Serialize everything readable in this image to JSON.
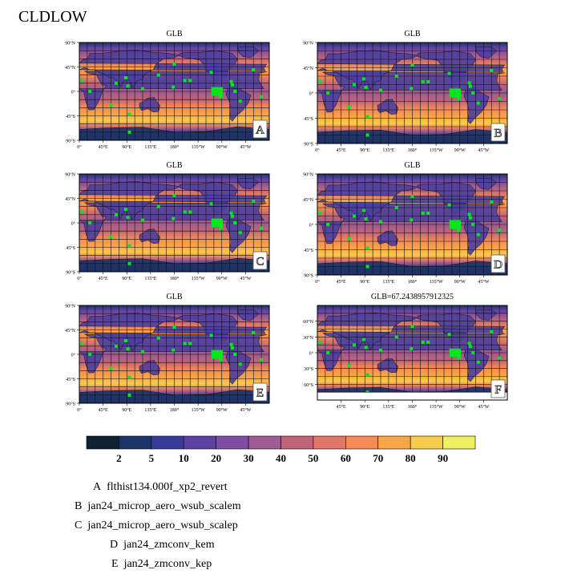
{
  "figure": {
    "title": "CLDLOW"
  },
  "colors": {
    "ocean_base": "#d98a5c",
    "marker": "#00e81c",
    "grid": "#111111",
    "frame": "#000000",
    "letter_box_border": "#555555"
  },
  "colorbar": {
    "colors": [
      "#0e2233",
      "#1d3466",
      "#3a3a98",
      "#5d42a4",
      "#7f4ea2",
      "#9e5a92",
      "#bf6479",
      "#df7668",
      "#f58a55",
      "#f9a646",
      "#f8cc4b",
      "#eef060"
    ],
    "labels": [
      "2",
      "5",
      "10",
      "20",
      "30",
      "40",
      "50",
      "60",
      "70",
      "80",
      "90"
    ]
  },
  "legend": {
    "items": [
      {
        "letter": "A",
        "name": "flthist134.000f_xp2_revert"
      },
      {
        "letter": "B",
        "name": "jan24_microp_aero_wsub_scalem"
      },
      {
        "letter": "C",
        "name": "jan24_microp_aero_wsub_scalep"
      },
      {
        "letter": "D",
        "name": "jan24_zmconv_kem"
      },
      {
        "letter": "E",
        "name": "jan24_zmconv_kep"
      }
    ]
  },
  "chart_data": [
    {
      "type": "heatmap",
      "panel": "A",
      "title": "GLB",
      "projection": "global",
      "ylabels": [
        "90°N",
        "45°N",
        "0°",
        "45°S",
        "90°S"
      ],
      "yvalues": [
        90,
        45,
        0,
        -45,
        -90
      ],
      "xlabels": [
        "0°",
        "45°E",
        "90°E",
        "135°E",
        "180°",
        "135°W",
        "90°W",
        "45°W"
      ],
      "xvalues": [
        0,
        45,
        90,
        135,
        180,
        225,
        270,
        315
      ],
      "xlim": [
        0,
        360
      ],
      "ylim": [
        -90,
        90
      ],
      "colorbar_label_range": [
        2,
        90
      ],
      "grid": true
    },
    {
      "type": "heatmap",
      "panel": "B",
      "title": "GLB",
      "projection": "global",
      "ylabels": [
        "90°N",
        "45°N",
        "0°",
        "45°S",
        "90°S"
      ],
      "yvalues": [
        90,
        45,
        0,
        -45,
        -90
      ],
      "xlabels": [
        "0°",
        "45°E",
        "90°E",
        "135°E",
        "180°",
        "135°W",
        "90°W",
        "45°W"
      ],
      "xvalues": [
        0,
        45,
        90,
        135,
        180,
        225,
        270,
        315
      ],
      "xlim": [
        0,
        360
      ],
      "ylim": [
        -90,
        90
      ],
      "colorbar_label_range": [
        2,
        90
      ],
      "grid": true
    },
    {
      "type": "heatmap",
      "panel": "C",
      "title": "GLB",
      "projection": "global",
      "ylabels": [
        "90°N",
        "45°N",
        "0°",
        "45°S",
        "90°S"
      ],
      "yvalues": [
        90,
        45,
        0,
        -45,
        -90
      ],
      "xlabels": [
        "0°",
        "45°E",
        "90°E",
        "135°E",
        "180°",
        "135°W",
        "90°W",
        "45°W"
      ],
      "xvalues": [
        0,
        45,
        90,
        135,
        180,
        225,
        270,
        315
      ],
      "xlim": [
        0,
        360
      ],
      "ylim": [
        -90,
        90
      ],
      "colorbar_label_range": [
        2,
        90
      ],
      "grid": true
    },
    {
      "type": "heatmap",
      "panel": "D",
      "title": "GLB",
      "projection": "global",
      "ylabels": [
        "90°N",
        "45°N",
        "0°",
        "45°S",
        "90°S"
      ],
      "yvalues": [
        90,
        45,
        0,
        -45,
        -90
      ],
      "xlabels": [
        "0°",
        "45°E",
        "90°E",
        "135°E",
        "180°",
        "135°W",
        "90°W",
        "45°W"
      ],
      "xvalues": [
        0,
        45,
        90,
        135,
        180,
        225,
        270,
        315
      ],
      "xlim": [
        0,
        360
      ],
      "ylim": [
        -90,
        90
      ],
      "colorbar_label_range": [
        2,
        90
      ],
      "grid": true
    },
    {
      "type": "heatmap",
      "panel": "E",
      "title": "GLB",
      "projection": "global",
      "ylabels": [
        "90°N",
        "45°N",
        "0°",
        "45°S",
        "90°S"
      ],
      "yvalues": [
        90,
        45,
        0,
        -45,
        -90
      ],
      "xlabels": [
        "0°",
        "45°E",
        "90°E",
        "135°E",
        "180°",
        "135°W",
        "90°W",
        "45°W"
      ],
      "xvalues": [
        0,
        45,
        90,
        135,
        180,
        225,
        270,
        315
      ],
      "xlim": [
        0,
        360
      ],
      "ylim": [
        -90,
        90
      ],
      "colorbar_label_range": [
        2,
        90
      ],
      "grid": true
    },
    {
      "type": "heatmap",
      "panel": "F",
      "title": "GLB=67.2438957912325",
      "projection": "robinson",
      "ylabels": [
        "60°N",
        "30°N",
        "0°",
        "30°S",
        "60°S"
      ],
      "yvalues": [
        60,
        30,
        0,
        -30,
        -60
      ],
      "xlabels": [
        "45°E",
        "90°E",
        "135°E",
        "180°",
        "135°W",
        "90°W",
        "45°W"
      ],
      "xvalues": [
        45,
        90,
        135,
        180,
        225,
        270,
        315
      ],
      "xlim": [
        0,
        360
      ],
      "ylim": [
        -90,
        90
      ],
      "global_mean": 67.2438957912325,
      "colorbar_label_range": [
        2,
        90
      ],
      "grid": true
    }
  ]
}
